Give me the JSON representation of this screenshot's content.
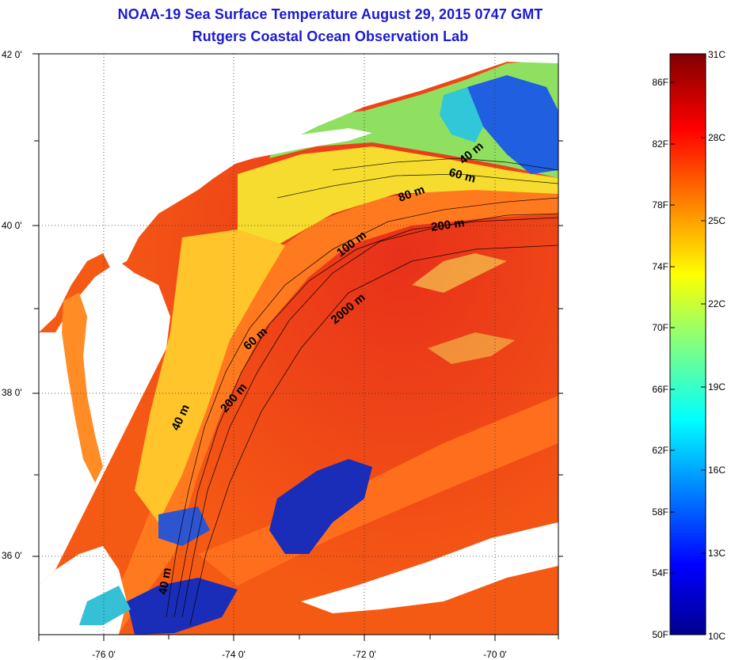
{
  "title": {
    "line1": "NOAA-19 Sea Surface Temperature August 29, 2015 0747 GMT",
    "line2": "Rutgers Coastal Ocean Observation Lab"
  },
  "map": {
    "lat_labels": [
      "42 0'",
      "40 0'",
      "38 0'",
      "36 0'"
    ],
    "lon_labels": [
      "-76 0'",
      "-74 0'",
      "-72 0'",
      "-70 0'"
    ],
    "lat_range": [
      35,
      42
    ],
    "lon_range": [
      -77,
      -69
    ],
    "isobath_labels": [
      "40 m",
      "60 m",
      "80 m",
      "200 m",
      "100 m",
      "2000 m",
      "60 m",
      "200 m",
      "40 m",
      "40 m"
    ],
    "colors": {
      "land": "#ffffff",
      "cloud": "#ffffff",
      "warm_water": "#f03a10",
      "shelf_water": "#ff8a20",
      "cool_shelf": "#f0e030",
      "cold_water": "#1030c0"
    }
  },
  "colorbar": {
    "fahrenheit_labels": [
      "86F",
      "82F",
      "78F",
      "74F",
      "70F",
      "66F",
      "62F",
      "58F",
      "54F",
      "50F"
    ],
    "celsius_labels": [
      "31C",
      "28C",
      "25C",
      "22C",
      "19C",
      "16C",
      "13C",
      "10C"
    ],
    "range_f": [
      50,
      88
    ],
    "colormap": "jet"
  }
}
